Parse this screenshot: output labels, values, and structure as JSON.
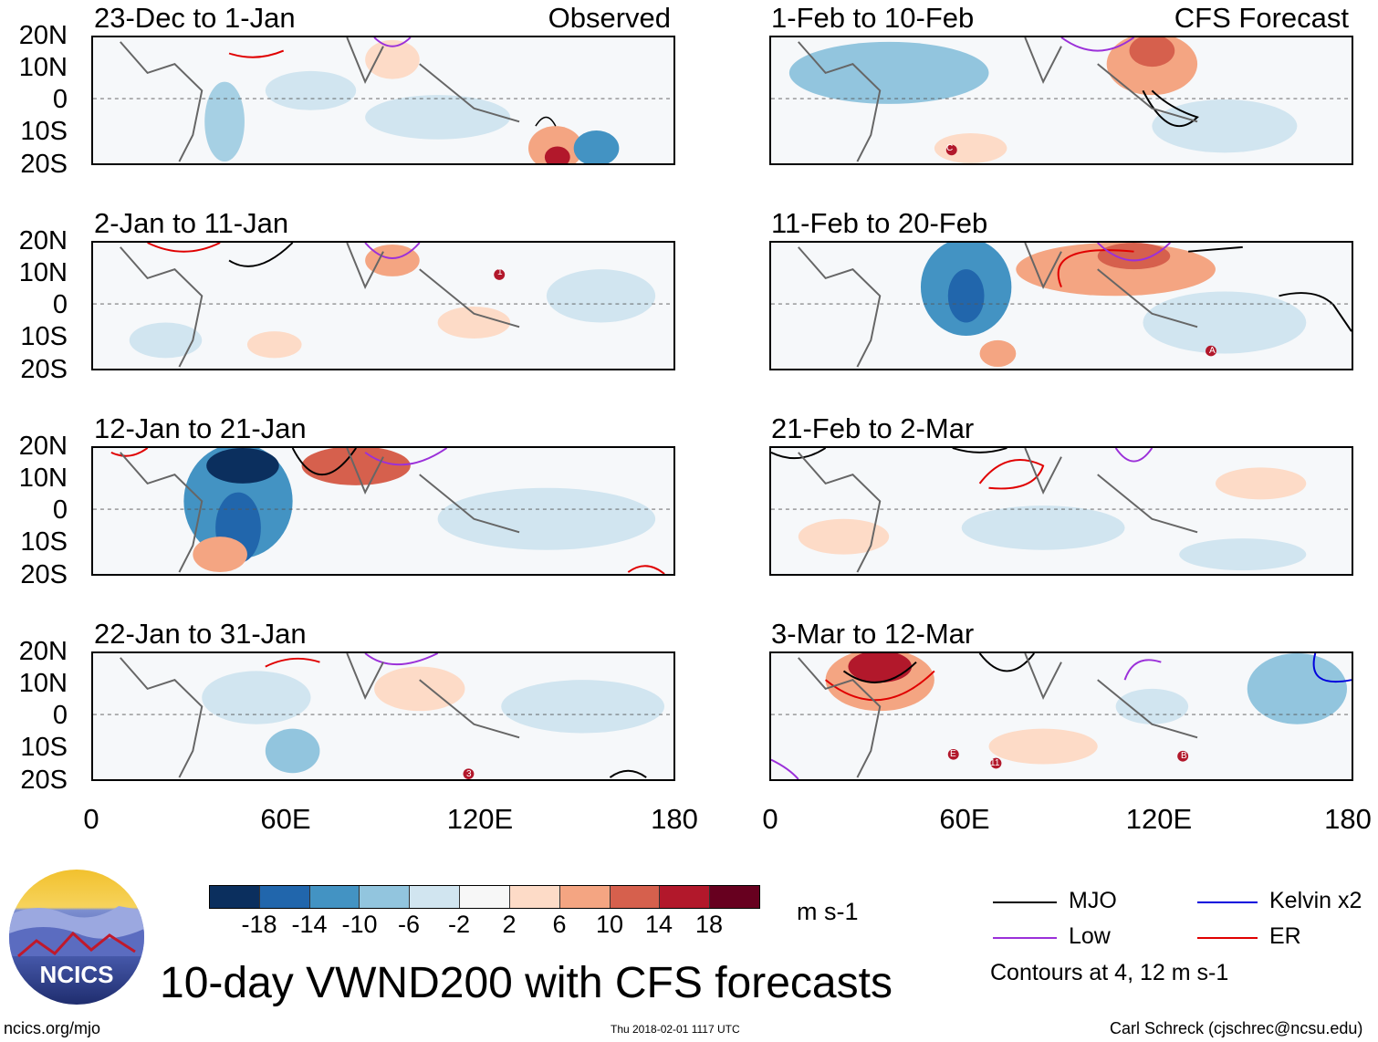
{
  "left_header": "Observed",
  "right_header": "CFS Forecast",
  "panels_left": [
    {
      "title": "23-Dec to 1-Jan"
    },
    {
      "title": "2-Jan to 11-Jan"
    },
    {
      "title": "12-Jan to 21-Jan"
    },
    {
      "title": "22-Jan to 31-Jan"
    }
  ],
  "panels_right": [
    {
      "title": "1-Feb to 10-Feb"
    },
    {
      "title": "11-Feb to 20-Feb"
    },
    {
      "title": "21-Feb to 2-Mar"
    },
    {
      "title": "3-Mar to 12-Mar"
    }
  ],
  "lat_labels": [
    "20N",
    "10N",
    "0",
    "10S",
    "20S"
  ],
  "lon_labels": [
    "0",
    "60E",
    "120E",
    "180"
  ],
  "colorbar": {
    "colors": [
      "#0b2f5e",
      "#2166ac",
      "#4393c3",
      "#92c5de",
      "#d1e5f0",
      "#f7f7f7",
      "#fddbc7",
      "#f4a582",
      "#d6604d",
      "#b2182b",
      "#67001f"
    ],
    "labels": [
      "-18",
      "-14",
      "-10",
      "-6",
      "-2",
      "2",
      "6",
      "10",
      "14",
      "18"
    ],
    "units": "m s-1"
  },
  "legend": {
    "items": [
      {
        "label": "MJO",
        "color": "#000000"
      },
      {
        "label": "Kelvin x2",
        "color": "#0000dd"
      },
      {
        "label": "Low",
        "color": "#9b30d9"
      },
      {
        "label": "ER",
        "color": "#e00000"
      }
    ],
    "note": "Contours at 4, 12 m s-1"
  },
  "logo_text": "NCICS",
  "main_title": "10-day VWND200 with CFS forecasts",
  "footer": {
    "url": "ncics.org/mjo",
    "timestamp": "Thu 2018-02-01 1117 UTC",
    "author": "Carl Schreck (cjschrec@ncsu.edu)"
  },
  "storm_markers": [
    "C",
    "1",
    "A",
    "3",
    "E",
    "11",
    "B"
  ]
}
